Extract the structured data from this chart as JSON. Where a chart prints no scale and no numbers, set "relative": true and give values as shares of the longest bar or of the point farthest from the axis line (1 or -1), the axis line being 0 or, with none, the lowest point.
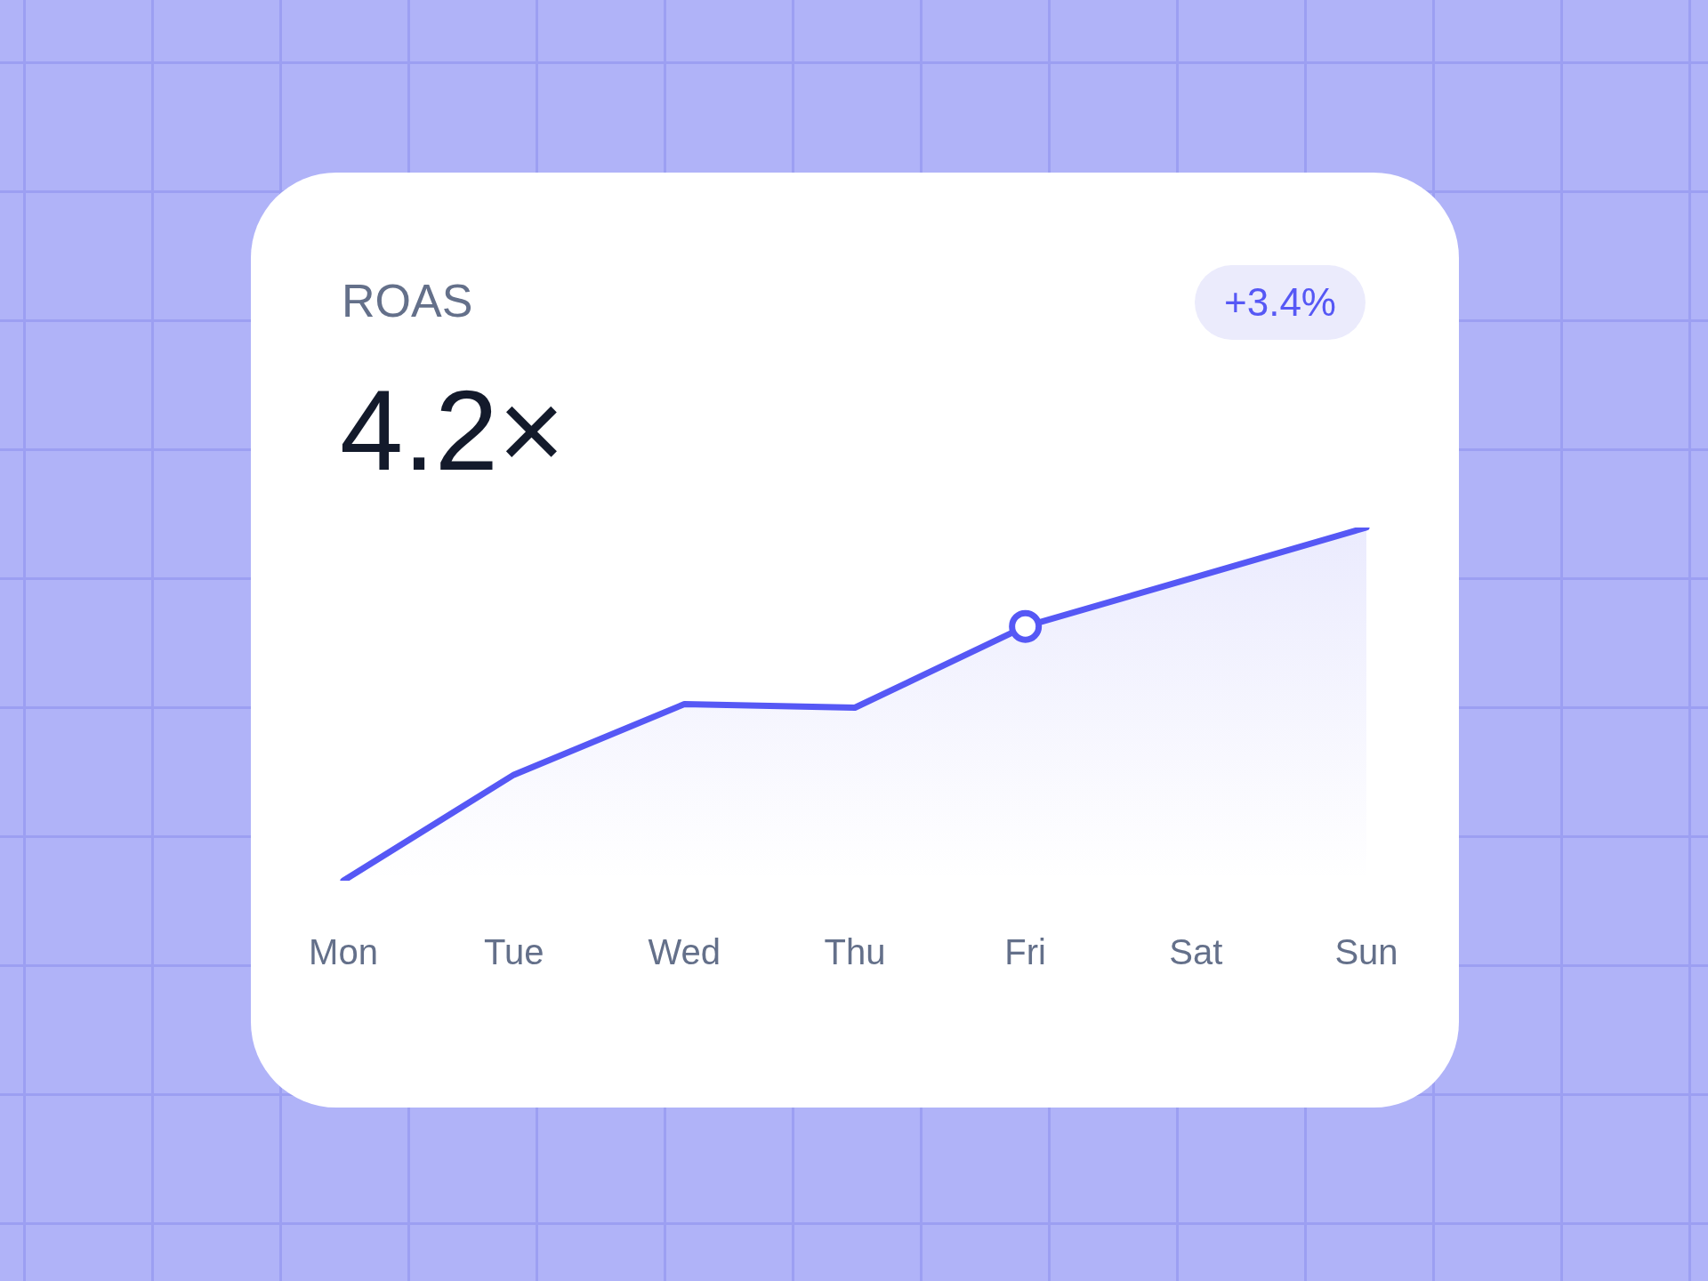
{
  "chart_data": {
    "type": "area",
    "title": "ROAS",
    "relative": true,
    "grid": false,
    "legend": false,
    "tick_labels": "x",
    "annotations": [
      "4.2×",
      "+3.4%"
    ],
    "categories": [
      "Mon",
      "Tue",
      "Wed",
      "Thu",
      "Fri",
      "Sat",
      "Sun"
    ],
    "series": [
      {
        "color": "#5658f5",
        "values": [
          0,
          0.3,
          0.5,
          0.49,
          0.72,
          0.86,
          1
        ]
      },
      {
        "type": "scatter",
        "color": "#5658f5",
        "values": [
          null,
          null,
          null,
          null,
          0.72,
          null,
          null
        ]
      }
    ]
  }
}
